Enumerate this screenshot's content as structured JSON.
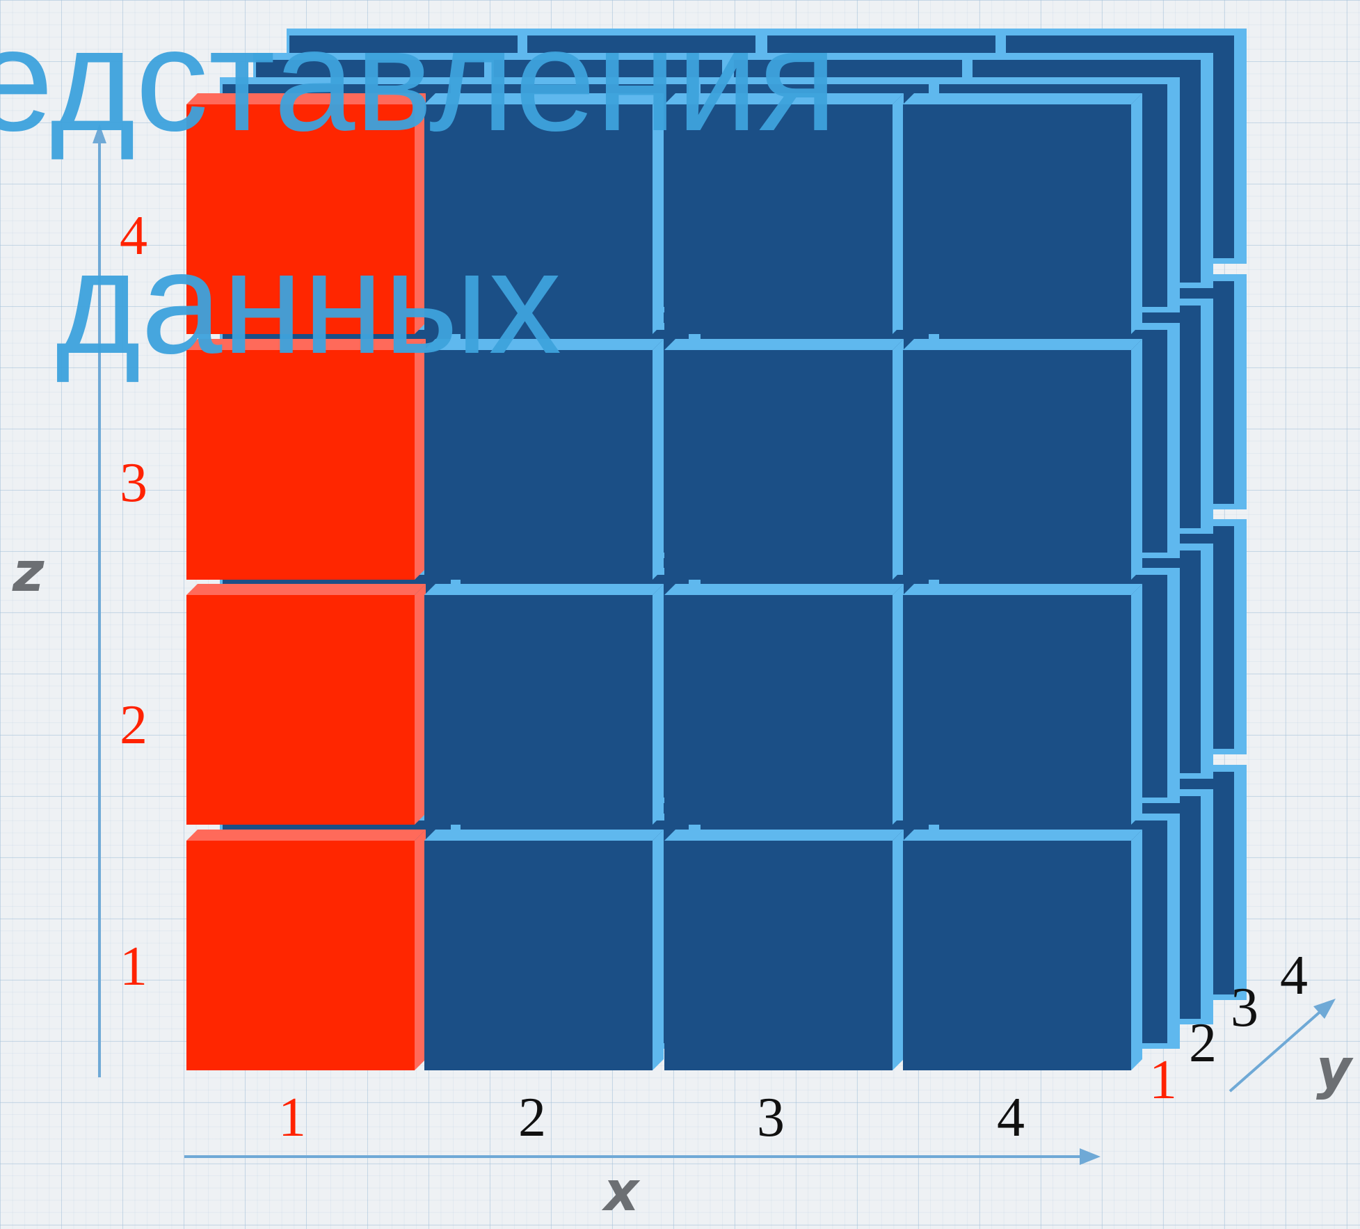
{
  "title": {
    "line1": "едставления",
    "line2": "данных"
  },
  "axes": {
    "x_label": "x",
    "y_label": "y",
    "z_label": "z",
    "x_ticks": [
      "1",
      "2",
      "3",
      "4"
    ],
    "y_ticks": [
      "1",
      "2",
      "3",
      "4"
    ],
    "z_ticks": [
      "1",
      "2",
      "3",
      "4"
    ]
  },
  "grid": {
    "columns": 4,
    "rows": 4,
    "layers": 4,
    "highlighted_column": 1,
    "highlighted_layer": 1
  },
  "colors": {
    "block_fill": "#1b4f86",
    "block_edge": "#5fb8ee",
    "highlight_fill": "#ff2600",
    "highlight_edge": "#ff6a5a",
    "axis_line": "#6fa9d6",
    "tick_highlight": "#ff2200",
    "tick_normal": "#111111",
    "title": "#3ea3dd"
  }
}
